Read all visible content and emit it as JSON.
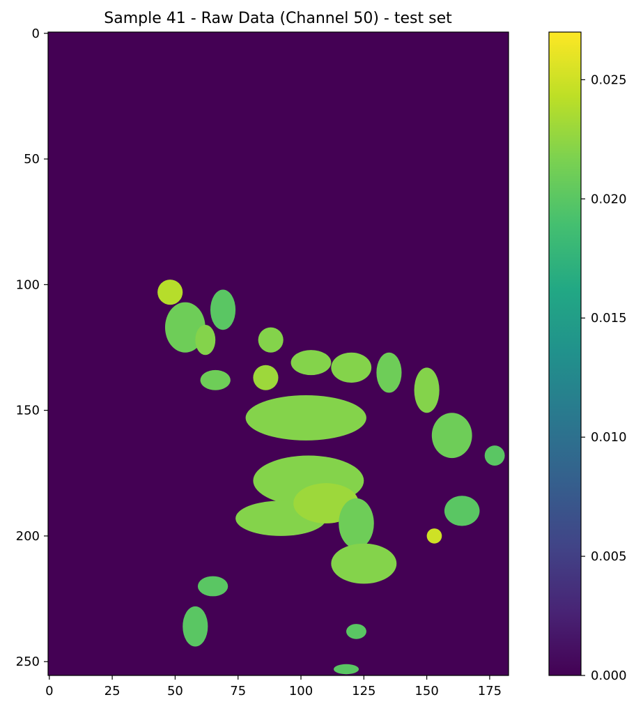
{
  "chart_data": {
    "type": "heatmap",
    "title": "Sample 41 - Raw Data (Channel 50) - test set",
    "xlabel": "",
    "ylabel": "",
    "x_range": [
      0,
      182
    ],
    "y_range": [
      0,
      255
    ],
    "x_ticks": [
      0,
      25,
      50,
      75,
      100,
      125,
      150,
      175
    ],
    "x_tick_labels": [
      "0",
      "25",
      "50",
      "75",
      "100",
      "125",
      "150",
      "175"
    ],
    "y_ticks": [
      0,
      50,
      100,
      150,
      200,
      250
    ],
    "y_tick_labels": [
      "0",
      "50",
      "100",
      "150",
      "200",
      "250"
    ],
    "y_inverted": true,
    "colormap": "viridis",
    "colorbar": {
      "range": [
        0.0,
        0.027
      ],
      "ticks": [
        0.0,
        0.005,
        0.01,
        0.015,
        0.02,
        0.025
      ],
      "tick_labels": [
        "0.000",
        "0.005",
        "0.010",
        "0.015",
        "0.020",
        "0.025"
      ]
    },
    "background_value": 0.0,
    "typical_tissue_value": 0.021,
    "grid": false,
    "regions": [
      {
        "cx": 48,
        "cy": 103,
        "rx": 5,
        "ry": 5,
        "value": 0.024
      },
      {
        "cx": 54,
        "cy": 117,
        "rx": 8,
        "ry": 10,
        "value": 0.021
      },
      {
        "cx": 62,
        "cy": 122,
        "rx": 4,
        "ry": 6,
        "value": 0.022
      },
      {
        "cx": 69,
        "cy": 110,
        "rx": 5,
        "ry": 8,
        "value": 0.02
      },
      {
        "cx": 66,
        "cy": 138,
        "rx": 6,
        "ry": 4,
        "value": 0.021
      },
      {
        "cx": 88,
        "cy": 122,
        "rx": 5,
        "ry": 5,
        "value": 0.022
      },
      {
        "cx": 86,
        "cy": 137,
        "rx": 5,
        "ry": 5,
        "value": 0.023
      },
      {
        "cx": 104,
        "cy": 131,
        "rx": 8,
        "ry": 5,
        "value": 0.022
      },
      {
        "cx": 120,
        "cy": 133,
        "rx": 8,
        "ry": 6,
        "value": 0.022
      },
      {
        "cx": 135,
        "cy": 135,
        "rx": 5,
        "ry": 8,
        "value": 0.021
      },
      {
        "cx": 150,
        "cy": 142,
        "rx": 5,
        "ry": 9,
        "value": 0.022
      },
      {
        "cx": 102,
        "cy": 153,
        "rx": 24,
        "ry": 9,
        "value": 0.022
      },
      {
        "cx": 160,
        "cy": 160,
        "rx": 8,
        "ry": 9,
        "value": 0.021
      },
      {
        "cx": 177,
        "cy": 168,
        "rx": 4,
        "ry": 4,
        "value": 0.02
      },
      {
        "cx": 103,
        "cy": 178,
        "rx": 22,
        "ry": 10,
        "value": 0.022
      },
      {
        "cx": 92,
        "cy": 193,
        "rx": 18,
        "ry": 7,
        "value": 0.022
      },
      {
        "cx": 110,
        "cy": 187,
        "rx": 13,
        "ry": 8,
        "value": 0.023
      },
      {
        "cx": 122,
        "cy": 195,
        "rx": 7,
        "ry": 10,
        "value": 0.021
      },
      {
        "cx": 125,
        "cy": 211,
        "rx": 13,
        "ry": 8,
        "value": 0.022
      },
      {
        "cx": 164,
        "cy": 190,
        "rx": 7,
        "ry": 6,
        "value": 0.02
      },
      {
        "cx": 153,
        "cy": 200,
        "rx": 3,
        "ry": 3,
        "value": 0.025
      },
      {
        "cx": 65,
        "cy": 220,
        "rx": 6,
        "ry": 4,
        "value": 0.02
      },
      {
        "cx": 58,
        "cy": 236,
        "rx": 5,
        "ry": 8,
        "value": 0.02
      },
      {
        "cx": 122,
        "cy": 238,
        "rx": 4,
        "ry": 3,
        "value": 0.02
      },
      {
        "cx": 118,
        "cy": 253,
        "rx": 5,
        "ry": 2,
        "value": 0.02
      }
    ]
  }
}
